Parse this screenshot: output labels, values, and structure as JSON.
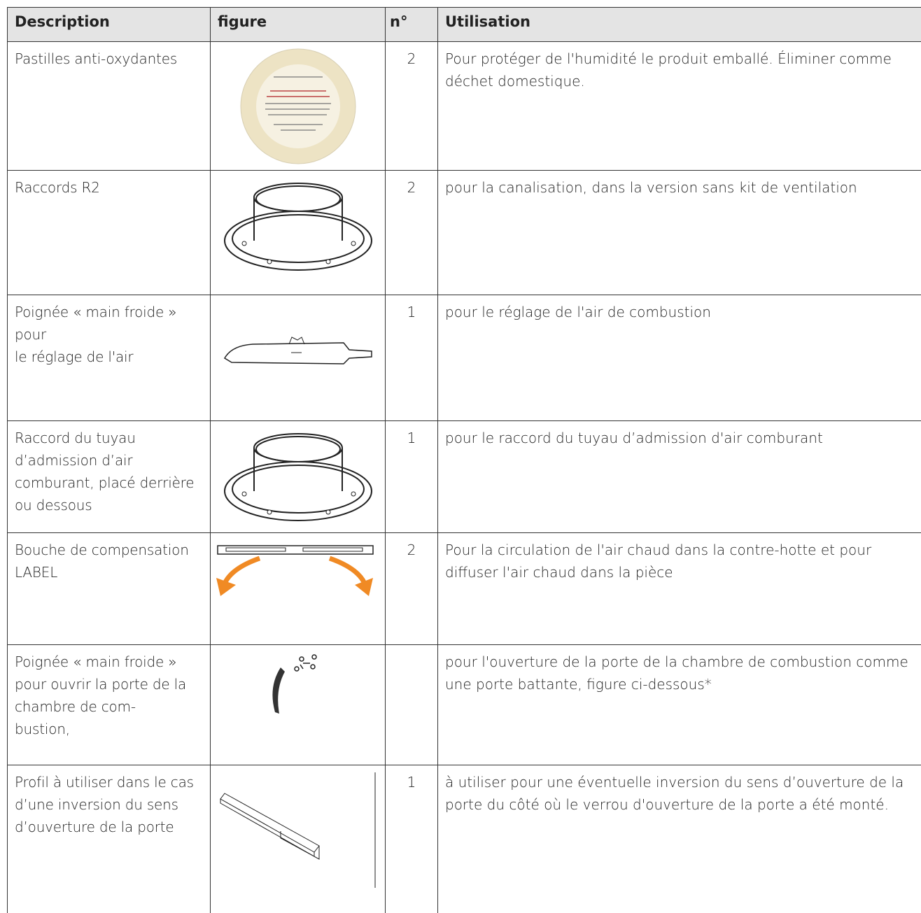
{
  "table": {
    "header": [
      "Description",
      "figure",
      "n°",
      "Utilisation"
    ],
    "rows": [
      {
        "description": "Pastilles anti-oxydantes",
        "n": 2,
        "utilisation": "Pour protéger de l'humidité le produit emballé. Éliminer comme déchet domestique."
      },
      {
        "description": "Raccords R2",
        "n": 2,
        "utilisation": "pour la canalisation, dans la version sans kit de ventilation"
      },
      {
        "description": "Poignée « main froide » pour\nle réglage de l'air",
        "n": 1,
        "utilisation": "pour le réglage de l'air de combustion"
      },
      {
        "description": "Raccord du tuyau d’admission d’air comburant, placé derrière ou dessous",
        "n": 1,
        "utilisation": " pour le raccord du tuyau d’admission d'air comburant"
      },
      {
        "description": "Bouche de compensation LABEL",
        "n": 2,
        "utilisation": "Pour la circulation de l'air chaud dans la contre-hotte et pour diffuser l'air chaud dans la pièce"
      },
      {
        "description": "Poignée « main froide » pour ouvrir la porte de la chambre de com-\nbustion,",
        "n": null,
        "utilisation": "pour l'ouverture de la porte de la chambre de combustion comme une porte battante, figure ci-dessous*"
      },
      {
        "description": "Profil à utiliser dans le cas d’une inversion du sens d’ouverture de la porte",
        "n": 1,
        "utilisation": "à utiliser pour une éventuelle inversion du sens d’ouverture de la porte du côté où le verrou d'ouverture de la porte a été monté."
      }
    ]
  }
}
